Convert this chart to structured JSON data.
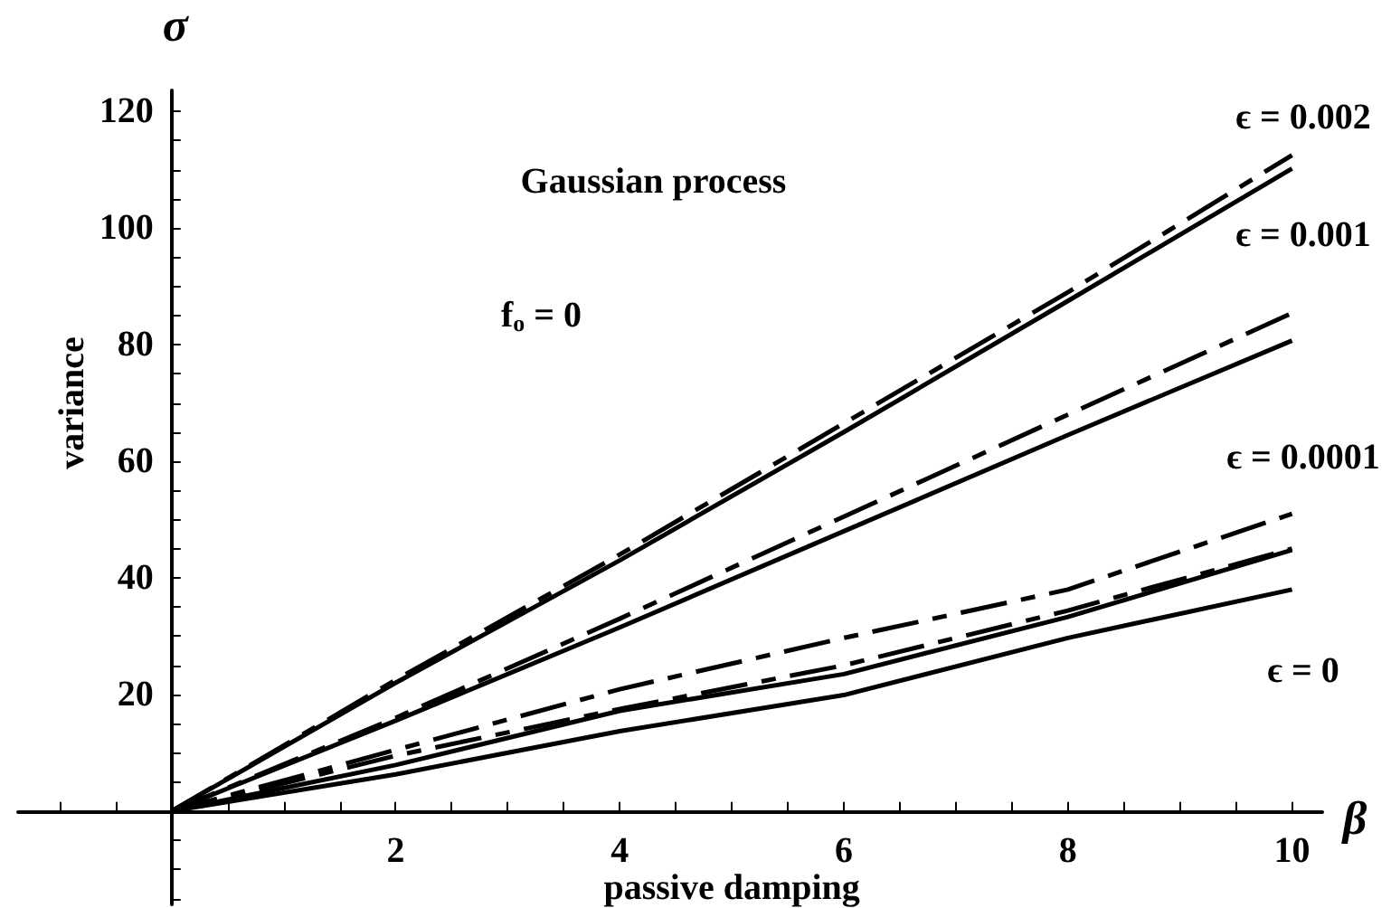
{
  "chart_data": {
    "type": "line",
    "xlabel": "passive damping",
    "ylabel": "variance",
    "x": [
      0,
      2,
      4,
      6,
      8,
      10
    ],
    "series": [
      {
        "color": "#000000",
        "line_style": "solid",
        "values": [
          0,
          22,
          43,
          65,
          87.5,
          110.2
        ]
      },
      {
        "color": "#000000",
        "line_style": "dashed",
        "values": [
          0,
          22.5,
          44,
          66.5,
          89,
          112.5
        ]
      },
      {
        "color": "#000000",
        "line_style": "solid",
        "values": [
          0,
          15.5,
          31.5,
          48,
          64.5,
          80.7
        ]
      },
      {
        "color": "#000000",
        "line_style": "dashed",
        "values": [
          0,
          16,
          33,
          50.5,
          68,
          85.4
        ]
      },
      {
        "color": "#000000",
        "line_style": "solid",
        "values": [
          0,
          7.9,
          17.2,
          23.5,
          33.3,
          44.8
        ]
      },
      {
        "color": "#000000",
        "line_style": "dashed",
        "values": [
          0,
          10.5,
          20.9,
          29.7,
          38,
          51
        ]
      },
      {
        "color": "#000000",
        "line_style": "solid",
        "values": [
          0,
          6.3,
          13.7,
          19.9,
          29.7,
          38
        ]
      },
      {
        "color": "#000000",
        "line_style": "dashed",
        "values": [
          0,
          9.5,
          17.5,
          25,
          34.4,
          45
        ]
      }
    ],
    "annotations": [
      "Gaussian process",
      "f$_{o}$ = 0",
      "σ",
      "β",
      "ϵ = 0.002",
      "ϵ = 0.001",
      "ϵ = 0.0001",
      "ϵ = 0"
    ],
    "marker": "none",
    "grid": false,
    "xlim": [
      -1.37,
      10.27
    ],
    "ylim": [
      -16,
      123.6
    ],
    "xticks": [
      {
        "value": -1,
        "label": null
      },
      {
        "value": -0.5,
        "label": null
      },
      {
        "value": 0.5,
        "label": null
      },
      {
        "value": 1,
        "label": null
      },
      {
        "value": 1.5,
        "label": null
      },
      2,
      {
        "value": 2.5,
        "label": null
      },
      {
        "value": 3,
        "label": null
      },
      {
        "value": 3.5,
        "label": null
      },
      4,
      {
        "value": 4.5,
        "label": null
      },
      {
        "value": 5,
        "label": null
      },
      {
        "value": 5.5,
        "label": null
      },
      6,
      {
        "value": 6.5,
        "label": null
      },
      {
        "value": 7,
        "label": null
      },
      {
        "value": 7.5,
        "label": null
      },
      8,
      {
        "value": 8.5,
        "label": null
      },
      {
        "value": 9,
        "label": null
      },
      {
        "value": 9.5,
        "label": null
      },
      10
    ],
    "yticks": [
      {
        "value": -15,
        "label": null
      },
      {
        "value": -10,
        "label": null
      },
      {
        "value": -5,
        "label": null
      },
      {
        "value": 5,
        "label": null
      },
      {
        "value": 10,
        "label": null
      },
      {
        "value": 15,
        "label": null
      },
      20,
      {
        "value": 25,
        "label": null
      },
      {
        "value": 30,
        "label": null
      },
      {
        "value": 35,
        "label": null
      },
      40,
      {
        "value": 45,
        "label": null
      },
      {
        "value": 50,
        "label": null
      },
      {
        "value": 55,
        "label": null
      },
      60,
      {
        "value": 65,
        "label": null
      },
      {
        "value": 70,
        "label": null
      },
      {
        "value": 75,
        "label": null
      },
      80,
      {
        "value": 85,
        "label": null
      },
      {
        "value": 90,
        "label": null
      },
      {
        "value": 95,
        "label": null
      },
      100,
      {
        "value": 105,
        "label": null
      },
      {
        "value": 110,
        "label": null
      },
      {
        "value": 115,
        "label": null
      },
      120
    ]
  }
}
